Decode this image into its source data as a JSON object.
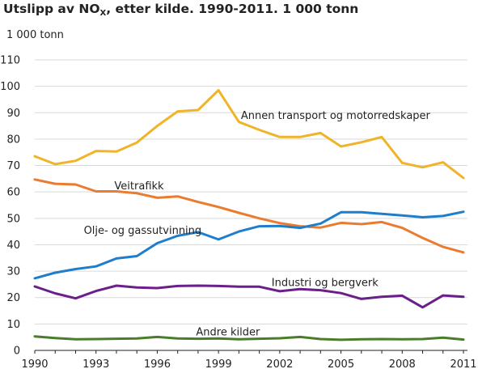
{
  "title": {
    "pre": "Utslipp av NO",
    "sub": "X",
    "post": ", etter kilde. 1990-2011. 1 000 tonn"
  },
  "chart_data": {
    "type": "line",
    "y_unit": "1 000 tonn",
    "xlim": [
      1990,
      2011
    ],
    "ylim": [
      0,
      110
    ],
    "x_ticks": [
      1990,
      1993,
      1996,
      1999,
      2002,
      2005,
      2008,
      2011
    ],
    "y_ticks": [
      0,
      10,
      20,
      30,
      40,
      50,
      60,
      70,
      80,
      90,
      100,
      110
    ],
    "grid": "horizontal",
    "x": [
      1990,
      1991,
      1992,
      1993,
      1994,
      1995,
      1996,
      1997,
      1998,
      1999,
      2000,
      2001,
      2002,
      2003,
      2004,
      2005,
      2006,
      2007,
      2008,
      2009,
      2010,
      2011
    ],
    "series": [
      {
        "name": "Annen transport og motorredskaper",
        "color": "#f0b429",
        "values": [
          73.5,
          70.5,
          71.8,
          75.5,
          75.3,
          78.7,
          85,
          90.5,
          91,
          98.5,
          86.5,
          83.5,
          80.8,
          80.8,
          82.3,
          77.2,
          78.8,
          80.8,
          71,
          69.3,
          71.2,
          65.3
        ],
        "label_pos": [
          2000.1,
          89
        ]
      },
      {
        "name": "Veitrafikk",
        "color": "#e97c30",
        "values": [
          64.7,
          63.1,
          62.8,
          60.2,
          60.2,
          59.5,
          57.8,
          58.3,
          56.2,
          54.3,
          52.1,
          50,
          48.2,
          47,
          46.5,
          48.3,
          47.8,
          48.6,
          46.4,
          42.6,
          39.2,
          37.1
        ],
        "label_pos": [
          1993.9,
          62.3
        ]
      },
      {
        "name": "Olje- og gassutvinning",
        "color": "#1f7ecb",
        "values": [
          27.3,
          29.4,
          30.8,
          31.8,
          34.8,
          35.7,
          40.6,
          43.4,
          44.8,
          42,
          45,
          47,
          47.1,
          46.4,
          48,
          52.3,
          52.3,
          51.7,
          51.1,
          50.4,
          50.9,
          52.5
        ],
        "label_pos": [
          1992.4,
          45.5
        ]
      },
      {
        "name": "Industri og bergverk",
        "color": "#6b1f8a",
        "values": [
          24.2,
          21.6,
          19.7,
          22.5,
          24.5,
          23.8,
          23.6,
          24.4,
          24.5,
          24.4,
          24.1,
          24.1,
          22.4,
          23.2,
          22.8,
          21.7,
          19.5,
          20.3,
          20.7,
          16.3,
          20.8,
          20.3
        ],
        "label_pos": [
          2001.6,
          25.7
        ]
      },
      {
        "name": "Andre kilder",
        "color": "#4a7d2a",
        "values": [
          5.3,
          4.7,
          4.2,
          4.3,
          4.4,
          4.5,
          5.1,
          4.5,
          4.4,
          4.5,
          4.2,
          4.4,
          4.6,
          5.1,
          4.3,
          4,
          4.2,
          4.3,
          4.2,
          4.3,
          4.8,
          4.1
        ],
        "label_pos": [
          1997.9,
          7
        ]
      }
    ]
  }
}
